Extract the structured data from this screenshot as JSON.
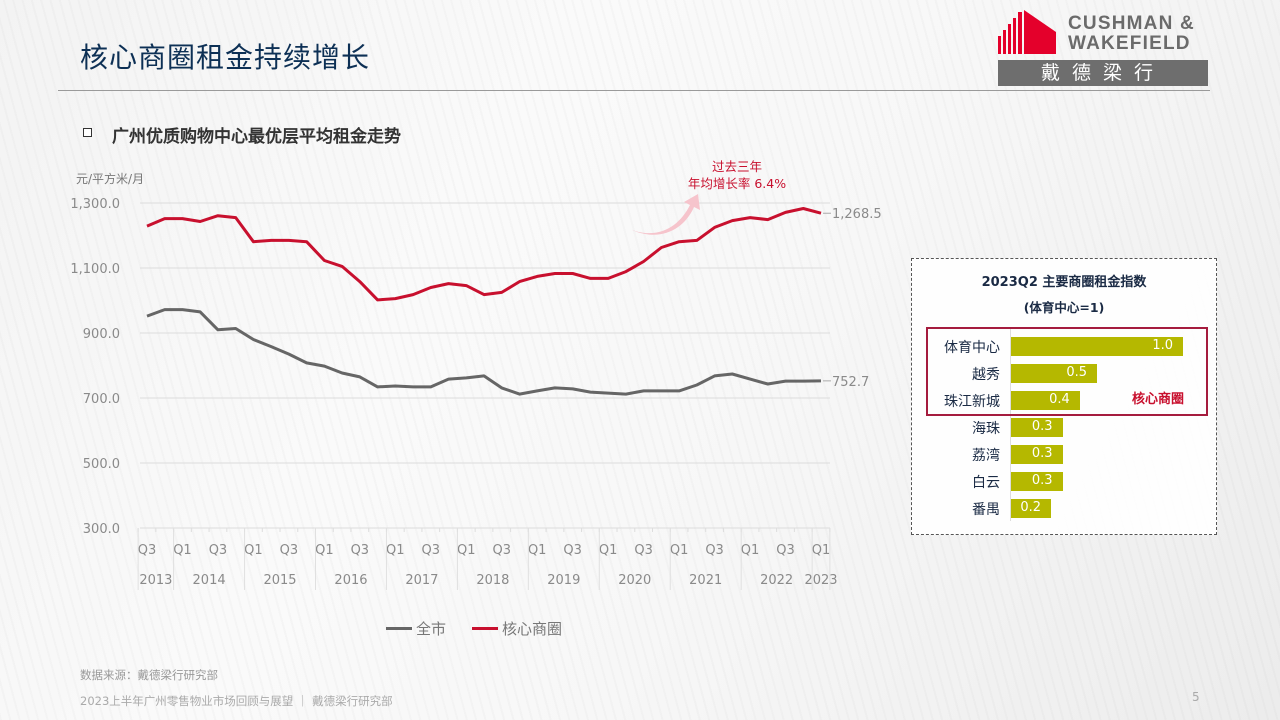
{
  "header": {
    "title": "核心商圈租金持续增长",
    "logo_line1": "CUSHMAN &",
    "logo_line2": "WAKEFIELD",
    "logo_cn": "戴德梁行"
  },
  "section": {
    "subtitle": "广州优质购物中心最优层平均租金走势",
    "unit": "元/平方米/月"
  },
  "annotation": {
    "line1": "过去三年",
    "line2": "年均增长率 6.4%"
  },
  "chart_data": {
    "type": "line",
    "title": "广州优质购物中心最优层平均租金走势",
    "ylabel": "元/平方米/月",
    "xlabel": "",
    "ylim": [
      300,
      1300
    ],
    "yticks": [
      "1,300.0",
      "1,100.0",
      "900.0",
      "700.0",
      "500.0",
      "300.0"
    ],
    "ytick_values": [
      1300,
      1100,
      900,
      700,
      500,
      300
    ],
    "grid": true,
    "legend_position": "bottom",
    "x": [
      "2013Q3",
      "2013Q4",
      "2014Q1",
      "2014Q2",
      "2014Q3",
      "2014Q4",
      "2015Q1",
      "2015Q2",
      "2015Q3",
      "2015Q4",
      "2016Q1",
      "2016Q2",
      "2016Q3",
      "2016Q4",
      "2017Q1",
      "2017Q2",
      "2017Q3",
      "2017Q4",
      "2018Q1",
      "2018Q2",
      "2018Q3",
      "2018Q4",
      "2019Q1",
      "2019Q2",
      "2019Q3",
      "2019Q4",
      "2020Q1",
      "2020Q2",
      "2020Q3",
      "2020Q4",
      "2021Q1",
      "2021Q2",
      "2021Q3",
      "2021Q4",
      "2022Q1",
      "2022Q2",
      "2022Q3",
      "2022Q4",
      "2023Q1"
    ],
    "quarter_labels": [
      "Q3",
      "Q1",
      "Q3",
      "Q1",
      "Q3",
      "Q1",
      "Q3",
      "Q1",
      "Q3",
      "Q1",
      "Q3",
      "Q1",
      "Q3",
      "Q1",
      "Q3",
      "Q1",
      "Q3",
      "Q1",
      "Q3",
      "Q1"
    ],
    "year_labels": [
      "2013",
      "2014",
      "2015",
      "2016",
      "2017",
      "2018",
      "2019",
      "2020",
      "2021",
      "2022",
      "2023"
    ],
    "series": [
      {
        "name": "全市",
        "color": "#666666",
        "values": [
          952,
          972,
          972,
          965,
          910,
          914,
          880,
          858,
          835,
          808,
          798,
          777,
          765,
          734,
          737,
          734,
          734,
          758,
          762,
          768,
          731,
          712,
          722,
          731,
          728,
          718,
          715,
          712,
          722,
          722,
          722,
          740,
          768,
          774,
          758,
          743,
          752,
          752,
          752.7
        ],
        "end_label": "752.7"
      },
      {
        "name": "核心商圈",
        "color": "#c8102e",
        "values": [
          1229,
          1252,
          1252,
          1243,
          1261,
          1255,
          1181,
          1185,
          1185,
          1181,
          1123,
          1105,
          1058,
          1002,
          1006,
          1018,
          1040,
          1052,
          1046,
          1018,
          1025,
          1058,
          1074,
          1083,
          1083,
          1068,
          1068,
          1089,
          1120,
          1163,
          1181,
          1185,
          1225,
          1246,
          1255,
          1249,
          1271,
          1283,
          1268.5
        ],
        "end_label": "1,268.5"
      }
    ]
  },
  "index_panel": {
    "title": "2023Q2 主要商圈租金指数",
    "subtitle": "(体育中心=1)",
    "core_label": "核心商圈",
    "bar_color": "#b5b800",
    "max": 1.0,
    "items": [
      {
        "name": "体育中心",
        "value": 1.0,
        "label": "1.0"
      },
      {
        "name": "越秀",
        "value": 0.5,
        "label": "0.5"
      },
      {
        "name": "珠江新城",
        "value": 0.4,
        "label": "0.4"
      },
      {
        "name": "海珠",
        "value": 0.3,
        "label": "0.3"
      },
      {
        "name": "荔湾",
        "value": 0.3,
        "label": "0.3"
      },
      {
        "name": "白云",
        "value": 0.3,
        "label": "0.3"
      },
      {
        "name": "番禺",
        "value": 0.2,
        "label": "0.2"
      }
    ]
  },
  "footer": {
    "source": "数据来源：戴德梁行研究部",
    "report": "2023上半年广州零售物业市场回顾与展望 ｜ 戴德梁行研究部",
    "page": "5"
  }
}
